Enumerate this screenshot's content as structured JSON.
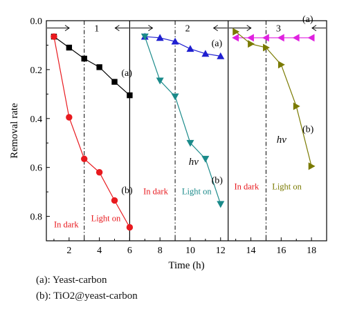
{
  "chart_data": {
    "type": "line",
    "xlabel": "Time (h)",
    "ylabel": "Removal rate",
    "xlim": [
      0.5,
      19
    ],
    "ylim": [
      0.0,
      0.9
    ],
    "y_reversed": true,
    "grid": false,
    "x_ticks": [
      "2",
      "4",
      "6",
      "8",
      "10",
      "12",
      "14",
      "16",
      "18"
    ],
    "x_tick_values": [
      2,
      4,
      6,
      8,
      10,
      12,
      14,
      16,
      18
    ],
    "y_ticks": [
      "0.0",
      "0.2",
      "0.4",
      "0.6",
      "0.8"
    ],
    "y_tick_values": [
      0.0,
      0.2,
      0.4,
      0.6,
      0.8
    ],
    "cycle_dividers": [
      6,
      12.5
    ],
    "light_switch_lines": [
      3,
      9,
      15
    ],
    "cycles": [
      {
        "number": "1",
        "series": [
          {
            "label": "(a)",
            "color": "#000000",
            "marker": "square",
            "x": [
              1,
              2,
              3,
              4,
              5,
              6
            ],
            "values": [
              0.065,
              0.11,
              0.155,
              0.19,
              0.25,
              0.305
            ]
          },
          {
            "label": "(b)",
            "color": "#e8191e",
            "marker": "circle",
            "x": [
              1,
              2,
              3,
              4,
              5,
              6
            ],
            "values": [
              0.065,
              0.395,
              0.565,
              0.62,
              0.735,
              0.845
            ]
          }
        ],
        "dark_label": "In dark",
        "light_label": "Light on",
        "hv_label": ""
      },
      {
        "number": "2",
        "series": [
          {
            "label": "(a)",
            "color": "#1f1fd0",
            "marker": "triangle-up",
            "x": [
              7,
              8,
              9,
              10,
              11,
              12
            ],
            "values": [
              0.065,
              0.07,
              0.085,
              0.115,
              0.135,
              0.145
            ]
          },
          {
            "label": "(b)",
            "color": "#1a8a8a",
            "marker": "triangle-down",
            "x": [
              7,
              8,
              9,
              10,
              11,
              12
            ],
            "values": [
              0.065,
              0.245,
              0.31,
              0.5,
              0.565,
              0.75
            ]
          }
        ],
        "dark_label": "In dark",
        "light_label": "Light on",
        "hv_label": "hv"
      },
      {
        "number": "3",
        "series": [
          {
            "label": "(a)",
            "color": "#e020e0",
            "marker": "triangle-left",
            "x": [
              13,
              14,
              15,
              16,
              17,
              18
            ],
            "values": [
              0.07,
              0.07,
              0.07,
              0.07,
              0.07,
              0.07
            ]
          },
          {
            "label": "(b)",
            "color": "#7a7a00",
            "marker": "triangle-right",
            "x": [
              13,
              14,
              15,
              16,
              17,
              18
            ],
            "values": [
              0.045,
              0.095,
              0.11,
              0.18,
              0.35,
              0.595
            ]
          }
        ],
        "dark_label": "In dark",
        "light_label": "Light on",
        "hv_label": "hv"
      }
    ],
    "dark_color": "#e8191e",
    "light_colors": [
      "#e8191e",
      "#1a8a8a",
      "#7a7a00"
    ]
  },
  "caption": {
    "line_a": "(a): Yeast-carbon",
    "line_b": "(b): TiO2@yeast-carbon"
  }
}
